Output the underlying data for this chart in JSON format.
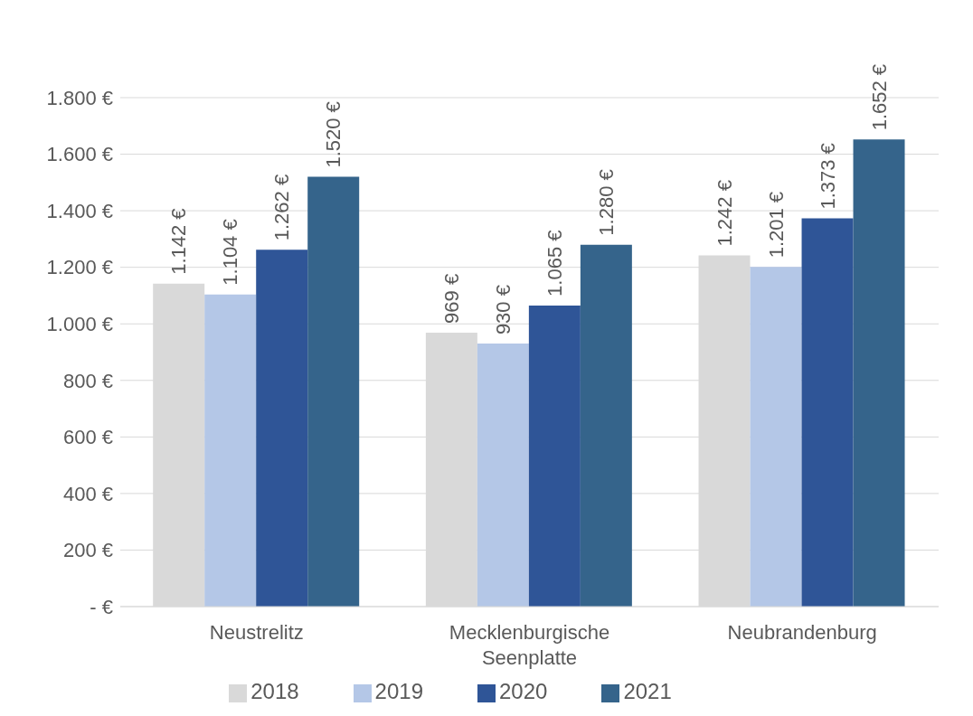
{
  "chart_data": {
    "type": "bar",
    "categories": [
      "Neustrelitz",
      "Mecklenburgische Seenplatte",
      "Neubrandenburg"
    ],
    "series": [
      {
        "name": "2018",
        "color": "#d9d9d9",
        "values": [
          1142,
          969,
          1242
        ],
        "value_labels": [
          "1.142 €",
          "969 €",
          "1.242 €"
        ]
      },
      {
        "name": "2019",
        "color": "#b4c7e7",
        "values": [
          1104,
          930,
          1201
        ],
        "value_labels": [
          "1.104 €",
          "930 €",
          "1.201 €"
        ]
      },
      {
        "name": "2020",
        "color": "#2f5597",
        "values": [
          1262,
          1065,
          1373
        ],
        "value_labels": [
          "1.262 €",
          "1.065 €",
          "1.373 €"
        ]
      },
      {
        "name": "2021",
        "color": "#35648b",
        "values": [
          1520,
          1280,
          1652
        ],
        "value_labels": [
          "1.520 €",
          "1.280 €",
          "1.652 €"
        ]
      }
    ],
    "ylim": [
      0,
      1800
    ],
    "yticks": [
      {
        "value": 0,
        "label": "-   €"
      },
      {
        "value": 200,
        "label": "200 €"
      },
      {
        "value": 400,
        "label": "400 €"
      },
      {
        "value": 600,
        "label": "600 €"
      },
      {
        "value": 800,
        "label": "800 €"
      },
      {
        "value": 1000,
        "label": "1.000 €"
      },
      {
        "value": 1200,
        "label": "1.200 €"
      },
      {
        "value": 1400,
        "label": "1.400 €"
      },
      {
        "value": 1600,
        "label": "1.600 €"
      },
      {
        "value": 1800,
        "label": "1.800 €"
      }
    ],
    "grid": "y",
    "legend": "bottom"
  }
}
